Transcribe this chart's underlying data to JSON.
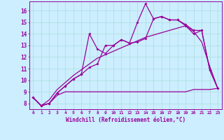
{
  "xlabel": "Windchill (Refroidissement éolien,°C)",
  "background_color": "#cceeff",
  "line_color": "#990099",
  "xlim": [
    -0.5,
    23.5
  ],
  "ylim": [
    7.5,
    16.8
  ],
  "xticks": [
    0,
    1,
    2,
    3,
    4,
    5,
    6,
    7,
    8,
    9,
    10,
    11,
    12,
    13,
    14,
    15,
    16,
    17,
    18,
    19,
    20,
    21,
    22,
    23
  ],
  "yticks": [
    8,
    9,
    10,
    11,
    12,
    13,
    14,
    15,
    16
  ],
  "x": [
    0,
    1,
    2,
    3,
    4,
    5,
    6,
    7,
    8,
    9,
    10,
    11,
    12,
    13,
    14,
    15,
    16,
    17,
    18,
    19,
    20,
    21,
    22,
    23
  ],
  "line_jagged": [
    8.5,
    7.8,
    8.0,
    8.9,
    9.5,
    10.1,
    10.5,
    11.1,
    11.4,
    13.0,
    13.0,
    13.5,
    13.2,
    15.0,
    16.6,
    15.3,
    15.5,
    15.2,
    15.2,
    14.8,
    14.3,
    14.3,
    10.9,
    9.3
  ],
  "line_smooth": [
    8.5,
    7.8,
    8.0,
    8.9,
    9.5,
    10.1,
    10.5,
    14.0,
    12.7,
    12.3,
    13.0,
    13.5,
    13.2,
    13.3,
    13.6,
    15.3,
    15.5,
    15.2,
    15.2,
    14.7,
    14.0,
    14.3,
    10.9,
    9.3
  ],
  "line_flat": [
    8.5,
    7.8,
    8.0,
    8.7,
    9.0,
    9.0,
    9.0,
    9.0,
    9.0,
    9.0,
    9.0,
    9.0,
    9.0,
    9.0,
    9.0,
    9.0,
    9.0,
    9.0,
    9.0,
    9.0,
    9.2,
    9.2,
    9.2,
    9.3
  ],
  "line_trend": [
    8.5,
    7.8,
    8.3,
    9.2,
    9.8,
    10.4,
    10.9,
    11.4,
    11.9,
    12.2,
    12.5,
    12.8,
    13.1,
    13.4,
    13.7,
    13.9,
    14.1,
    14.3,
    14.5,
    14.7,
    14.2,
    13.3,
    11.2,
    9.3
  ]
}
